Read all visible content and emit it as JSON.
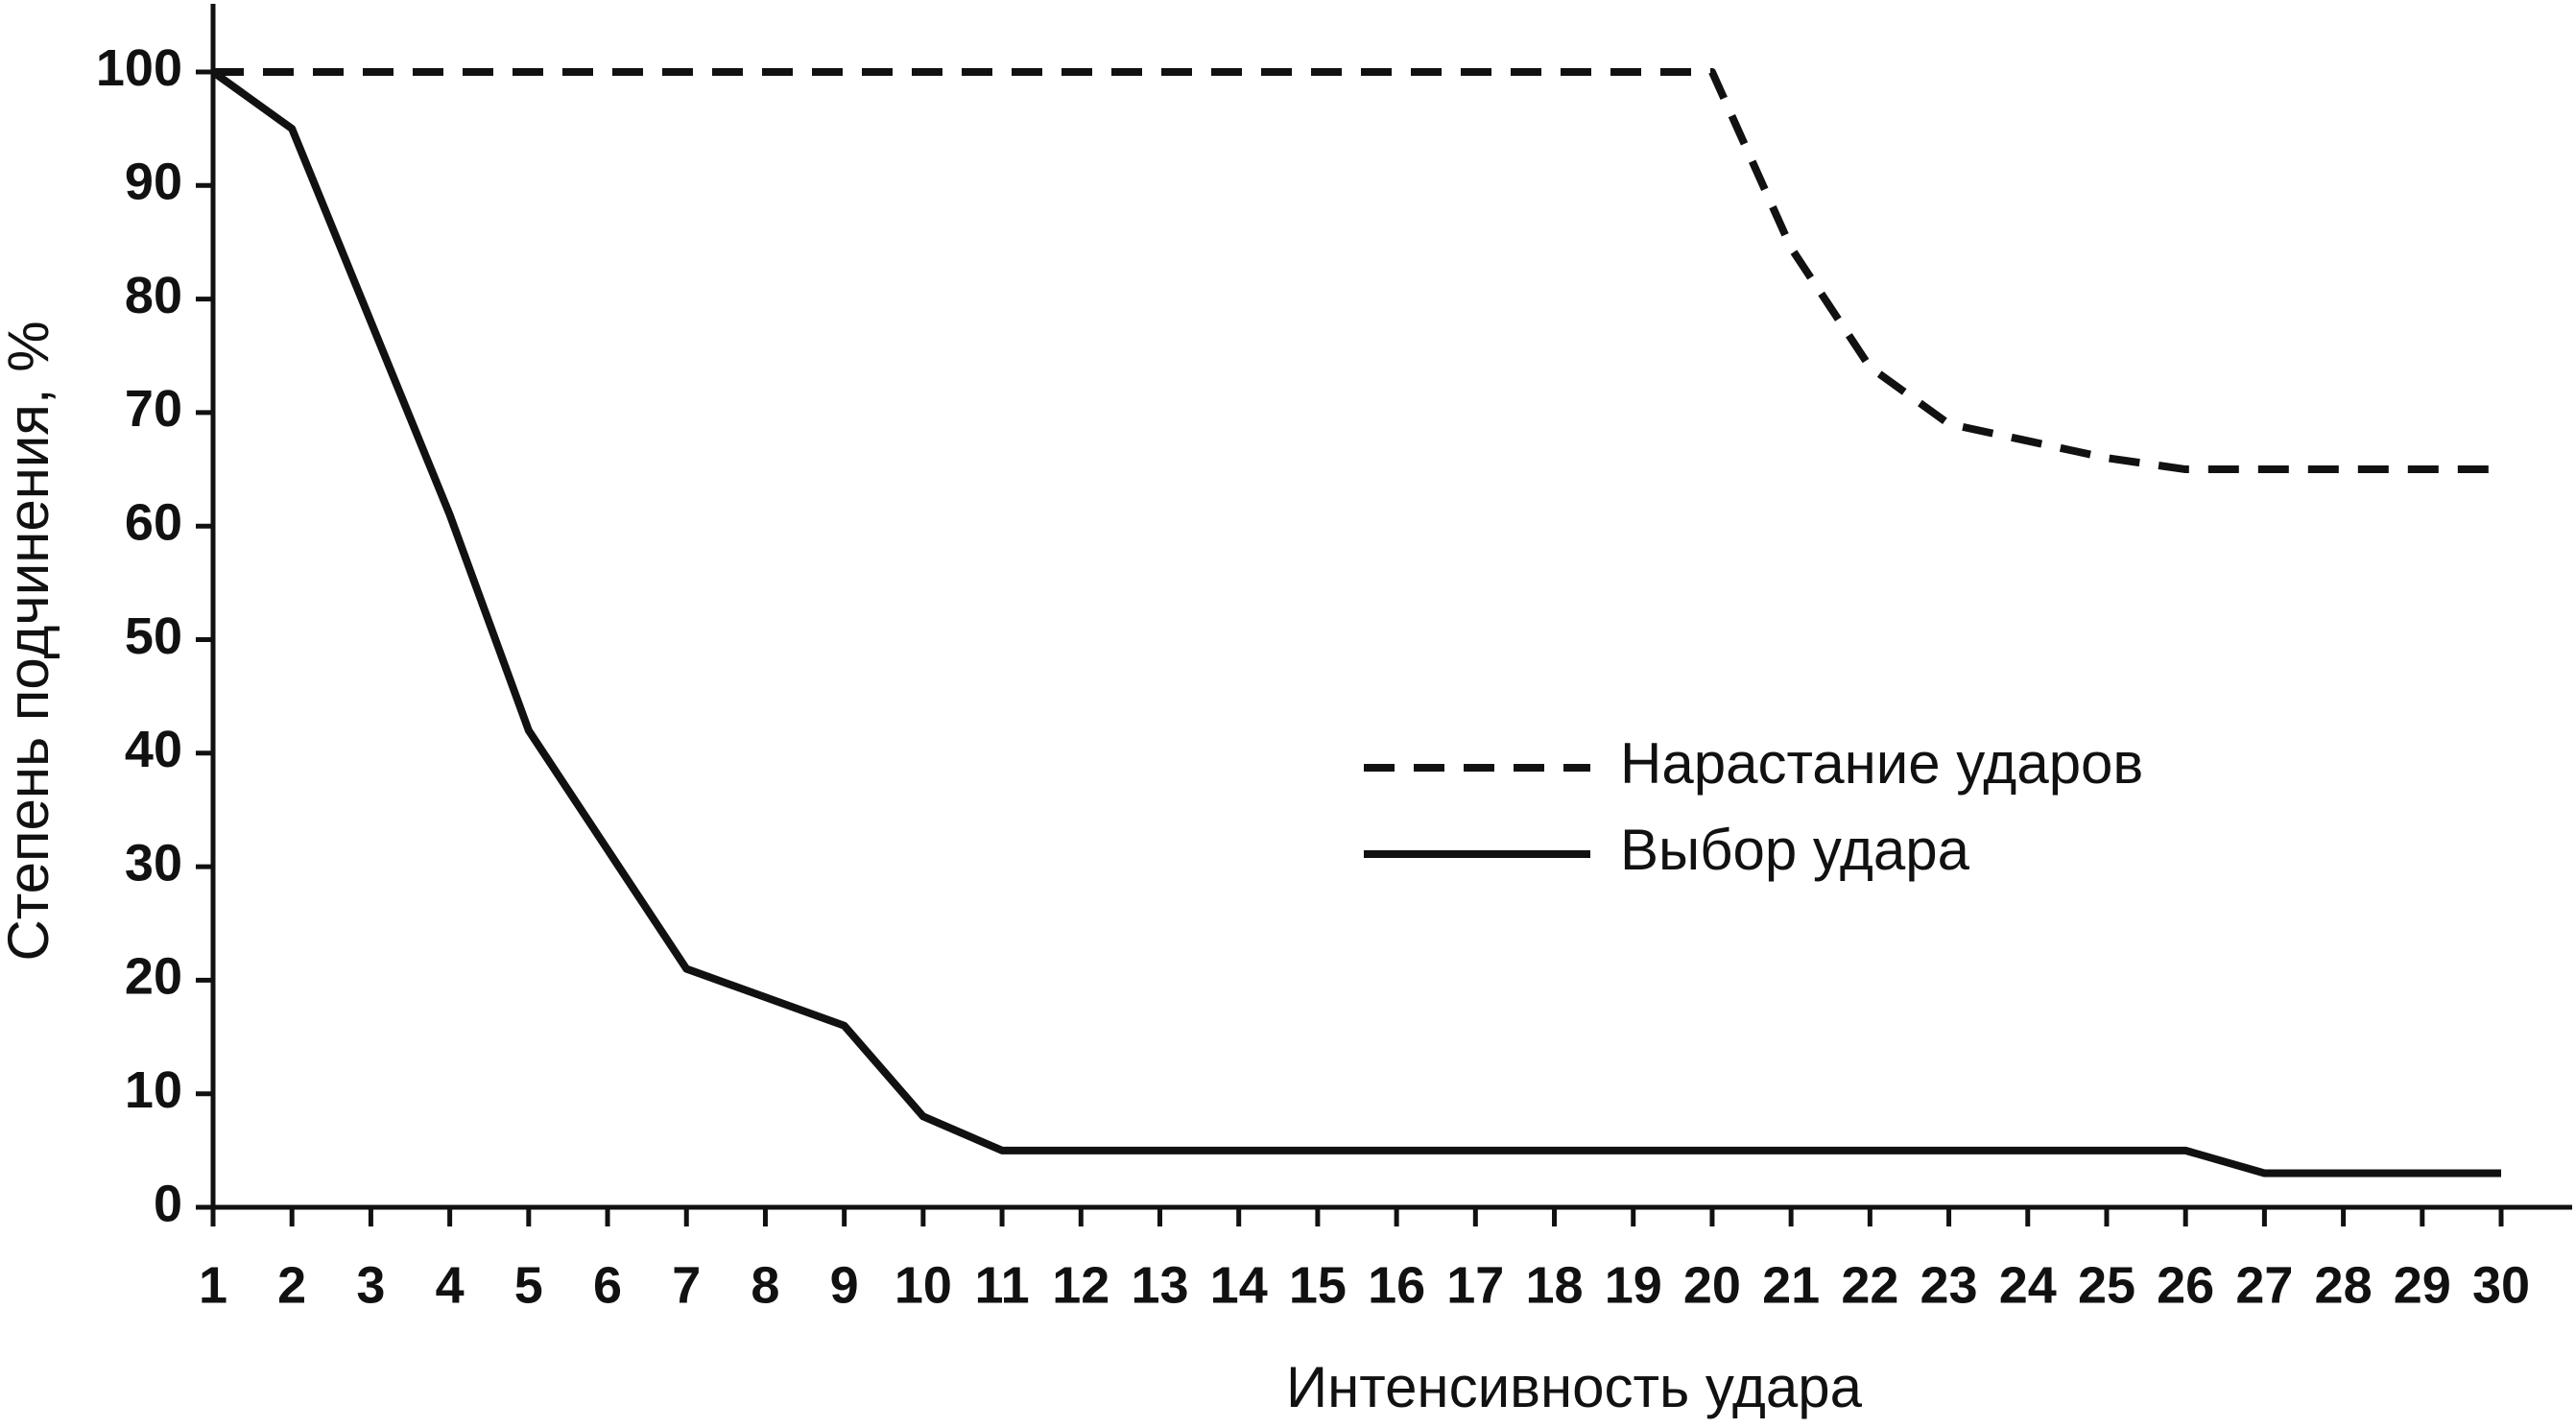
{
  "chart_data": {
    "type": "line",
    "x_label": "Интенсивность удара",
    "y_label": "Степень подчинения, %",
    "x": [
      1,
      2,
      3,
      4,
      5,
      6,
      7,
      8,
      9,
      10,
      11,
      12,
      13,
      14,
      15,
      16,
      17,
      18,
      19,
      20,
      21,
      22,
      23,
      24,
      25,
      26,
      27,
      28,
      29,
      30
    ],
    "xlim": [
      1,
      30.9
    ],
    "xticks": [
      1,
      2,
      3,
      4,
      5,
      6,
      7,
      8,
      9,
      10,
      11,
      12,
      13,
      14,
      15,
      16,
      17,
      18,
      19,
      20,
      21,
      22,
      23,
      24,
      25,
      26,
      27,
      28,
      29,
      30
    ],
    "ylim": [
      0,
      106
    ],
    "yticks": [
      0,
      10,
      20,
      30,
      40,
      50,
      60,
      70,
      80,
      90,
      100
    ],
    "series": [
      {
        "name": "Нарастание ударов",
        "color": "#111111",
        "dashed": true,
        "values": [
          100,
          100,
          100,
          100,
          100,
          100,
          100,
          100,
          100,
          100,
          100,
          100,
          100,
          100,
          100,
          100,
          100,
          100,
          100,
          100,
          84.5,
          74,
          69,
          67.5,
          66,
          65,
          65,
          65,
          65,
          65
        ]
      },
      {
        "name": "Выбор удара",
        "color": "#111111",
        "dashed": false,
        "values": [
          100,
          95,
          78,
          61,
          42,
          31.5,
          21,
          18.5,
          16,
          8,
          5,
          5,
          5,
          5,
          5,
          5,
          5,
          5,
          5,
          5,
          5,
          5,
          5,
          5,
          5,
          5,
          3,
          3,
          3,
          3
        ]
      }
    ]
  }
}
